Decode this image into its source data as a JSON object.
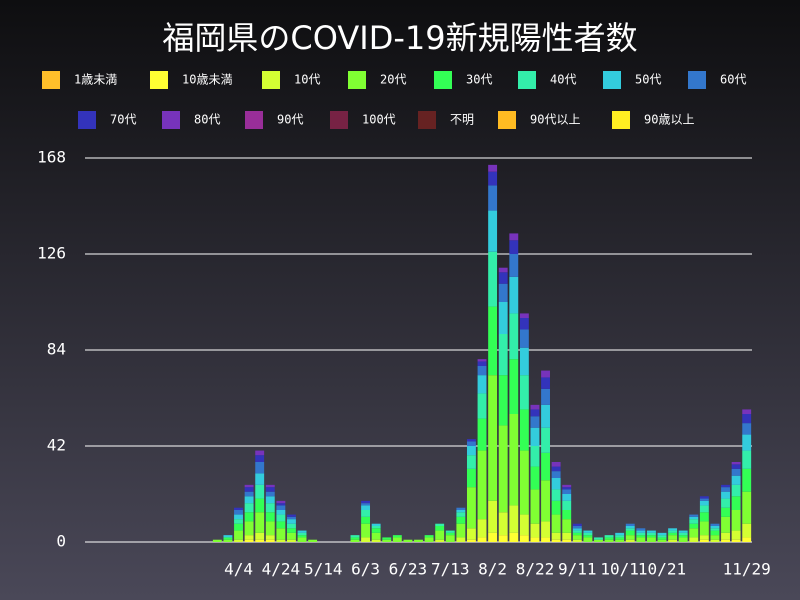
{
  "chart_data": {
    "type": "stacked_bar",
    "title": "福岡県のCOVID-19新規陽性者数",
    "categories": [
      null,
      null,
      null,
      null,
      null,
      null,
      null,
      null,
      null,
      null,
      null,
      null,
      null,
      null,
      "4/4",
      null,
      null,
      null,
      "4/24",
      null,
      null,
      null,
      "5/14",
      null,
      null,
      null,
      "6/3",
      null,
      null,
      null,
      "6/23",
      null,
      null,
      null,
      "7/13",
      null,
      null,
      null,
      "8/2",
      null,
      null,
      null,
      "8/22",
      null,
      null,
      null,
      "9/11",
      null,
      null,
      null,
      "10/1",
      null,
      null,
      null,
      "10/21",
      null,
      null,
      null,
      null,
      null,
      null,
      null,
      "11/29"
    ],
    "ylim": [
      0,
      168
    ],
    "yticks": [
      0,
      42,
      84,
      126,
      168
    ],
    "grid": true,
    "series": [
      {
        "name": "1歳未満",
        "color": "#ffbf2a",
        "values": [
          0,
          0,
          0,
          0,
          0,
          0,
          0,
          0,
          0,
          0,
          0,
          0,
          0,
          0,
          0,
          0,
          0,
          0,
          0,
          0,
          0,
          0,
          0,
          0,
          0,
          0,
          0,
          0,
          0,
          0,
          0,
          0,
          0,
          0,
          0,
          0,
          0,
          0,
          0,
          0,
          0,
          0,
          0,
          0,
          0,
          0,
          0,
          0,
          0,
          0,
          0,
          0,
          0,
          0,
          0,
          0,
          0,
          0,
          0,
          0,
          0,
          0,
          0
        ]
      },
      {
        "name": "10歳未満",
        "color": "#ffff33",
        "values": [
          0,
          0,
          0,
          0,
          0,
          0,
          0,
          0,
          0,
          0,
          0,
          0,
          0,
          0,
          0,
          1,
          1,
          1,
          0,
          0,
          0,
          0,
          0,
          0,
          0,
          0,
          0,
          0,
          0,
          0,
          0,
          0,
          0,
          0,
          0,
          0,
          1,
          2,
          4,
          3,
          4,
          3,
          2,
          2,
          1,
          1,
          0,
          0,
          0,
          0,
          0,
          0,
          0,
          0,
          0,
          0,
          0,
          0,
          1,
          0,
          1,
          1,
          2
        ]
      },
      {
        "name": "10代",
        "color": "#d4ff33",
        "values": [
          0,
          0,
          0,
          0,
          0,
          0,
          0,
          0,
          0,
          0,
          0,
          0,
          0,
          0,
          1,
          2,
          3,
          2,
          1,
          1,
          0,
          0,
          0,
          0,
          0,
          0,
          2,
          1,
          0,
          0,
          0,
          0,
          0,
          1,
          0,
          2,
          5,
          8,
          14,
          10,
          12,
          9,
          6,
          7,
          3,
          3,
          1,
          0,
          0,
          0,
          0,
          1,
          0,
          0,
          0,
          1,
          0,
          2,
          2,
          1,
          3,
          4,
          6
        ]
      },
      {
        "name": "20代",
        "color": "#80ff33",
        "values": [
          0,
          0,
          0,
          0,
          0,
          0,
          0,
          0,
          0,
          0,
          0,
          0,
          1,
          1,
          4,
          6,
          9,
          6,
          5,
          3,
          2,
          1,
          0,
          0,
          0,
          1,
          6,
          3,
          1,
          2,
          1,
          1,
          2,
          4,
          3,
          6,
          18,
          30,
          55,
          38,
          40,
          28,
          15,
          18,
          8,
          6,
          2,
          2,
          1,
          1,
          1,
          2,
          2,
          2,
          1,
          2,
          2,
          4,
          6,
          2,
          7,
          9,
          14
        ]
      },
      {
        "name": "30代",
        "color": "#33ff55",
        "values": [
          0,
          0,
          0,
          0,
          0,
          0,
          0,
          0,
          0,
          0,
          0,
          0,
          0,
          1,
          3,
          4,
          6,
          4,
          3,
          2,
          1,
          0,
          0,
          0,
          0,
          1,
          3,
          2,
          1,
          1,
          0,
          0,
          1,
          2,
          1,
          3,
          8,
          14,
          30,
          22,
          24,
          18,
          10,
          12,
          6,
          4,
          1,
          1,
          0,
          1,
          1,
          2,
          1,
          1,
          1,
          1,
          1,
          2,
          4,
          2,
          4,
          6,
          10
        ]
      },
      {
        "name": "40代",
        "color": "#33eeaa",
        "values": [
          0,
          0,
          0,
          0,
          0,
          0,
          0,
          0,
          0,
          0,
          0,
          0,
          0,
          0,
          2,
          4,
          6,
          4,
          3,
          2,
          1,
          0,
          0,
          0,
          0,
          1,
          3,
          1,
          0,
          0,
          0,
          0,
          0,
          1,
          1,
          2,
          6,
          11,
          24,
          18,
          20,
          15,
          9,
          11,
          5,
          4,
          1,
          1,
          1,
          1,
          1,
          1,
          1,
          1,
          1,
          1,
          1,
          2,
          3,
          1,
          4,
          5,
          8
        ]
      },
      {
        "name": "50代",
        "color": "#33ccdd",
        "values": [
          0,
          0,
          0,
          0,
          0,
          0,
          0,
          0,
          0,
          0,
          0,
          0,
          0,
          1,
          2,
          3,
          5,
          3,
          2,
          2,
          1,
          0,
          0,
          0,
          0,
          0,
          2,
          1,
          0,
          0,
          0,
          0,
          0,
          0,
          0,
          1,
          4,
          8,
          18,
          14,
          16,
          12,
          8,
          10,
          5,
          3,
          1,
          1,
          0,
          0,
          1,
          1,
          1,
          1,
          1,
          1,
          1,
          1,
          2,
          1,
          3,
          4,
          7
        ]
      },
      {
        "name": "60代",
        "color": "#3377cc",
        "values": [
          0,
          0,
          0,
          0,
          0,
          0,
          0,
          0,
          0,
          0,
          0,
          0,
          0,
          0,
          2,
          2,
          5,
          2,
          2,
          1,
          0,
          0,
          0,
          0,
          0,
          0,
          1,
          0,
          0,
          0,
          0,
          0,
          0,
          0,
          0,
          1,
          2,
          4,
          11,
          8,
          10,
          8,
          5,
          7,
          3,
          2,
          1,
          0,
          0,
          0,
          0,
          1,
          1,
          0,
          0,
          0,
          0,
          1,
          1,
          1,
          2,
          3,
          5
        ]
      },
      {
        "name": "70代",
        "color": "#3333bb",
        "values": [
          0,
          0,
          0,
          0,
          0,
          0,
          0,
          0,
          0,
          0,
          0,
          0,
          0,
          0,
          1,
          2,
          3,
          2,
          1,
          1,
          0,
          0,
          0,
          0,
          0,
          0,
          1,
          0,
          0,
          0,
          0,
          0,
          0,
          0,
          0,
          0,
          1,
          2,
          6,
          5,
          6,
          5,
          3,
          5,
          2,
          1,
          1,
          0,
          0,
          0,
          0,
          0,
          0,
          0,
          0,
          0,
          0,
          0,
          1,
          0,
          1,
          2,
          4
        ]
      },
      {
        "name": "80代",
        "color": "#7733bb",
        "values": [
          0,
          0,
          0,
          0,
          0,
          0,
          0,
          0,
          0,
          0,
          0,
          0,
          0,
          0,
          0,
          1,
          2,
          1,
          1,
          0,
          0,
          0,
          0,
          0,
          0,
          0,
          0,
          0,
          0,
          0,
          0,
          0,
          0,
          0,
          0,
          0,
          0,
          1,
          3,
          2,
          3,
          2,
          2,
          3,
          2,
          1,
          0,
          0,
          0,
          0,
          0,
          0,
          0,
          0,
          0,
          0,
          0,
          0,
          0,
          0,
          0,
          1,
          2
        ]
      },
      {
        "name": "90代",
        "color": "#992e99",
        "values": [
          0,
          0,
          0,
          0,
          0,
          0,
          0,
          0,
          0,
          0,
          0,
          0,
          0,
          0,
          0,
          0,
          0,
          0,
          0,
          0,
          0,
          0,
          0,
          0,
          0,
          0,
          0,
          0,
          0,
          0,
          0,
          0,
          0,
          0,
          0,
          0,
          0,
          0,
          0,
          0,
          0,
          0,
          0,
          0,
          0,
          0,
          0,
          0,
          0,
          0,
          0,
          0,
          0,
          0,
          0,
          0,
          0,
          0,
          0,
          0,
          0,
          0,
          0
        ]
      },
      {
        "name": "100代",
        "color": "#772244",
        "values": [
          0,
          0,
          0,
          0,
          0,
          0,
          0,
          0,
          0,
          0,
          0,
          0,
          0,
          0,
          0,
          0,
          0,
          0,
          0,
          0,
          0,
          0,
          0,
          0,
          0,
          0,
          0,
          0,
          0,
          0,
          0,
          0,
          0,
          0,
          0,
          0,
          0,
          0,
          0,
          0,
          0,
          0,
          0,
          0,
          0,
          0,
          0,
          0,
          0,
          0,
          0,
          0,
          0,
          0,
          0,
          0,
          0,
          0,
          0,
          0,
          0,
          0,
          0
        ]
      },
      {
        "name": "不明",
        "color": "#662222",
        "values": [
          0,
          0,
          0,
          0,
          0,
          0,
          0,
          0,
          0,
          0,
          0,
          0,
          0,
          0,
          0,
          0,
          0,
          0,
          0,
          0,
          0,
          0,
          0,
          0,
          0,
          0,
          0,
          0,
          0,
          0,
          0,
          0,
          0,
          0,
          0,
          0,
          0,
          0,
          0,
          0,
          0,
          0,
          0,
          0,
          0,
          0,
          0,
          0,
          0,
          0,
          0,
          0,
          0,
          0,
          0,
          0,
          0,
          0,
          0,
          0,
          0,
          0,
          0
        ]
      },
      {
        "name": "90代以上",
        "color": "#ffbb22",
        "values": [
          0,
          0,
          0,
          0,
          0,
          0,
          0,
          0,
          0,
          0,
          0,
          0,
          0,
          0,
          0,
          0,
          0,
          0,
          0,
          0,
          0,
          0,
          0,
          0,
          0,
          0,
          0,
          0,
          0,
          0,
          0,
          0,
          0,
          0,
          0,
          0,
          0,
          0,
          0,
          0,
          0,
          0,
          0,
          0,
          0,
          0,
          0,
          0,
          0,
          0,
          0,
          0,
          0,
          0,
          0,
          0,
          0,
          0,
          0,
          0,
          0,
          0,
          0
        ]
      },
      {
        "name": "90歳以上",
        "color": "#ffee22",
        "values": [
          0,
          0,
          0,
          0,
          0,
          0,
          0,
          0,
          0,
          0,
          0,
          0,
          0,
          0,
          0,
          0,
          0,
          0,
          0,
          0,
          0,
          0,
          0,
          0,
          0,
          0,
          0,
          0,
          0,
          0,
          0,
          0,
          0,
          0,
          0,
          0,
          0,
          0,
          0,
          0,
          0,
          0,
          0,
          0,
          0,
          0,
          0,
          0,
          0,
          0,
          0,
          0,
          0,
          0,
          0,
          0,
          0,
          0,
          0,
          0,
          0,
          0,
          0
        ]
      }
    ]
  }
}
